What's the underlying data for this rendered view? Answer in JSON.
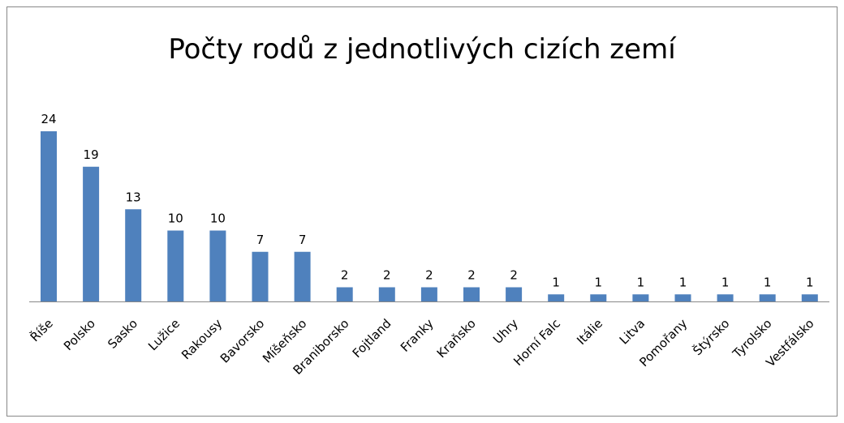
{
  "chart_data": {
    "type": "bar",
    "title": "Počty rodů z jednotlivých cizích zemí",
    "categories": [
      "Říše",
      "Polsko",
      "Sasko",
      "Lužice",
      "Rakousy",
      "Bavorsko",
      "Míšeňsko",
      "Braniborsko",
      "Fojtland",
      "Franky",
      "Kraňsko",
      "Uhry",
      "Horní Falc",
      "Itálie",
      "Litva",
      "Pomořany",
      "Štýrsko",
      "Tyrolsko",
      "Vestfálsko"
    ],
    "values": [
      24,
      19,
      13,
      10,
      10,
      7,
      7,
      2,
      2,
      2,
      2,
      2,
      1,
      1,
      1,
      1,
      1,
      1,
      1
    ],
    "color": "#4f81bd"
  }
}
